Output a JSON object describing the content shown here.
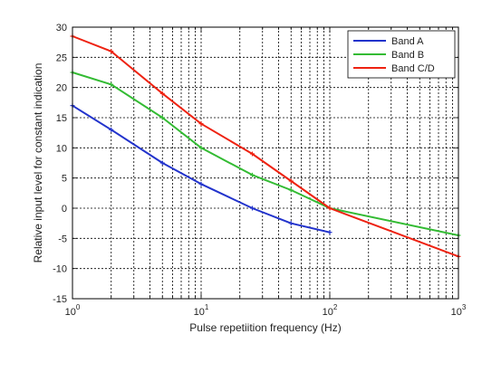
{
  "chart_data": {
    "type": "line",
    "xlabel": "Pulse repetiition frequency (Hz)",
    "ylabel": "Relative input level for constant indication",
    "xscale": "log",
    "xlim": [
      1,
      1000
    ],
    "ylim": [
      -15,
      30
    ],
    "grid": true,
    "legend_position": "top-right",
    "x_tick_labels": [
      {
        "base": "10",
        "exp": "0"
      },
      {
        "base": "10",
        "exp": "1"
      },
      {
        "base": "10",
        "exp": "2"
      },
      {
        "base": "10",
        "exp": "3"
      }
    ],
    "y_ticks": [
      -15,
      -10,
      -5,
      0,
      5,
      10,
      15,
      20,
      25,
      30
    ],
    "series": [
      {
        "name": "Band A",
        "color": "#2233cc",
        "x": [
          1,
          2,
          5,
          10,
          25,
          50,
          100
        ],
        "y": [
          17,
          13,
          7.5,
          4,
          0,
          -2.5,
          -4
        ]
      },
      {
        "name": "Band B",
        "color": "#33bb33",
        "x": [
          1,
          2,
          5,
          10,
          25,
          50,
          100,
          1000
        ],
        "y": [
          22.5,
          20.5,
          15,
          10,
          5.5,
          3,
          0,
          -4.5
        ]
      },
      {
        "name": "Band C/D",
        "color": "#ee2211",
        "x": [
          1,
          2,
          5,
          10,
          25,
          50,
          100,
          1000
        ],
        "y": [
          28.5,
          26,
          19,
          14,
          9,
          4.5,
          0,
          -8
        ]
      }
    ]
  }
}
